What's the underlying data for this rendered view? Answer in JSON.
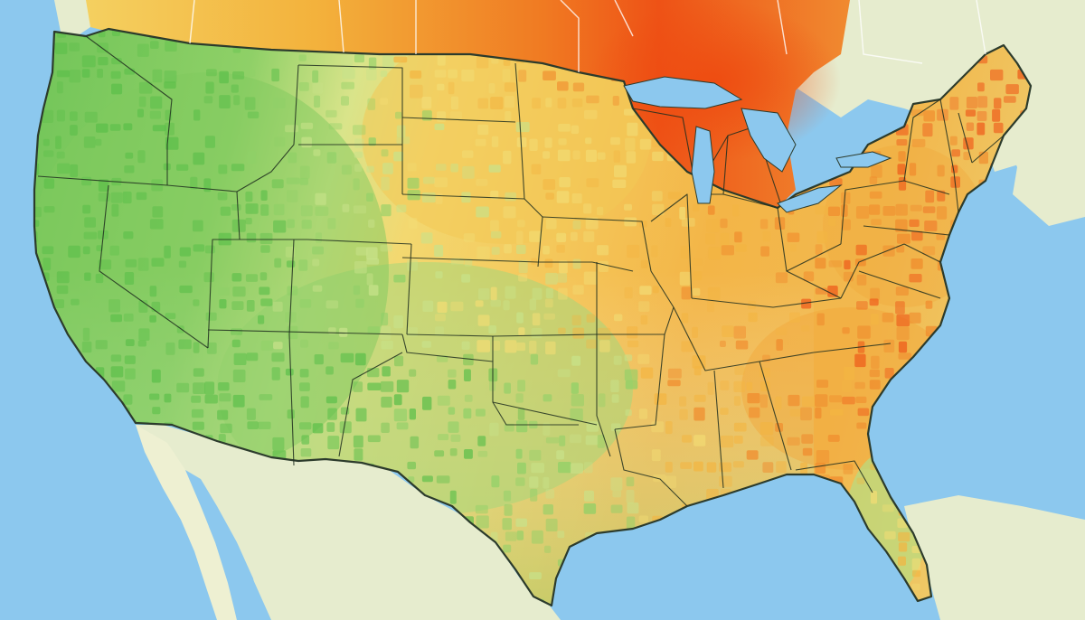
{
  "map": {
    "subject": "contiguous-united-states",
    "labels_shown": false,
    "colors": {
      "ocean": "#8cc8ee",
      "ocean_light": "#b7ddf4",
      "land_outside": "#e6ecce",
      "state_border": "#1f2e1f",
      "coast_shadow": "#2c3b2c",
      "low": "#5cbf4a",
      "low_mid": "#a8d97a",
      "mid": "#f4d86a",
      "mid_high": "#f2b13e",
      "high": "#f0641e"
    },
    "color_scale": [
      "#5cbf4a",
      "#8fd067",
      "#c8e28a",
      "#f2dc74",
      "#f3b542",
      "#f08a2c",
      "#ee5a1a"
    ],
    "regions": [
      {
        "name": "northwest",
        "level": "low"
      },
      {
        "name": "southwest",
        "level": "low"
      },
      {
        "name": "texas-gulf",
        "level": "low"
      },
      {
        "name": "central-plains",
        "level": "low-mid"
      },
      {
        "name": "northern-plains",
        "level": "mid"
      },
      {
        "name": "midwest",
        "level": "mid-high"
      },
      {
        "name": "southeast",
        "level": "mid-high"
      },
      {
        "name": "northeast",
        "level": "mid-high"
      },
      {
        "name": "great-lakes-canada",
        "level": "high"
      },
      {
        "name": "florida",
        "level": "low-mid"
      }
    ]
  }
}
